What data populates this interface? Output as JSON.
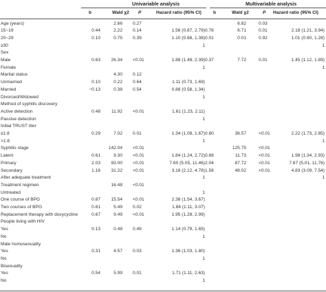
{
  "table": {
    "group_univariable": "Univariable analysis",
    "group_multivariable": "Multivariable analysis",
    "headers": {
      "b": "b",
      "wald": "Wald χ2",
      "p": "P",
      "hr": "Hazard ratio (95% CI)",
      "b2": "b",
      "wald2": "Wald χ2",
      "p2": "P",
      "hr2": "Hazard ratio (95% CI)"
    },
    "rows": [
      {
        "label": "Age (years)",
        "b1": "",
        "w1": "2.66",
        "p1": "0.27",
        "h1": "",
        "b2": "",
        "w2": "6.82",
        "p2": "0.03",
        "h2": ""
      },
      {
        "label": "15~19",
        "b1": "0.44",
        "w1": "2.22",
        "p1": "0.14",
        "h1": "1.56 (0.87, 2.79)",
        "b2": "0.78",
        "w2": "6.71",
        "p2": "0.01",
        "h2": "2.18 (1.21, 3.94)"
      },
      {
        "label": "20~29",
        "b1": "0.10",
        "w1": "0.75",
        "p1": "0.39",
        "h1": "1.10 (0.88, 1.38)",
        "b2": "0.01",
        "w2": "0.01",
        "p2": "0.92",
        "h2": "1.01 (0.80, 1.28)"
      },
      {
        "label": "≥30",
        "b1": "",
        "w1": "",
        "p1": "",
        "h1": "1",
        "b2": "",
        "w2": "",
        "p2": "",
        "h2": "1"
      },
      {
        "label": "Sex",
        "b1": "",
        "w1": "",
        "p1": "",
        "h1": "",
        "b2": "",
        "w2": "",
        "p2": "",
        "h2": ""
      },
      {
        "label": "Male",
        "b1": "0.63",
        "w1": "26.34",
        "p1": "<0.01",
        "h1": "1.88 (1.48, 2.39)",
        "b2": "0.37",
        "w2": "7.72",
        "p2": "0.01",
        "h2": "1.45 (1.12, 1.89)"
      },
      {
        "label": "Female",
        "b1": "",
        "w1": "",
        "p1": "",
        "h1": "1",
        "b2": "",
        "w2": "",
        "p2": "",
        "h2": "1"
      },
      {
        "label": "Marital status",
        "b1": "",
        "w1": "4.30",
        "p1": "0.12",
        "h1": "",
        "b2": "",
        "w2": "",
        "p2": "",
        "h2": ""
      },
      {
        "label": "Unmarried",
        "b1": "0.10",
        "w1": "0.22",
        "p1": "0.64",
        "h1": "1.11 (0.73, 1.69)",
        "b2": "",
        "w2": "",
        "p2": "",
        "h2": ""
      },
      {
        "label": "Married",
        "b1": "−0.13",
        "w1": "0.38",
        "p1": "0.54",
        "h1": "0.88 (0.58, 1.34)",
        "b2": "",
        "w2": "",
        "p2": "",
        "h2": ""
      },
      {
        "label": "Divorced/Widowed",
        "b1": "",
        "w1": "",
        "p1": "",
        "h1": "1",
        "b2": "",
        "w2": "",
        "p2": "",
        "h2": ""
      },
      {
        "label": "Method of syphilis discovery",
        "b1": "",
        "w1": "",
        "p1": "",
        "h1": "",
        "b2": "",
        "w2": "",
        "p2": "",
        "h2": ""
      },
      {
        "label": "Active detection",
        "b1": "0.48",
        "w1": "11.92",
        "p1": "<0.01",
        "h1": "1.61 (1.23, 2.11)",
        "b2": "",
        "w2": "",
        "p2": "",
        "h2": ""
      },
      {
        "label": "Passive detection",
        "b1": "",
        "w1": "",
        "p1": "",
        "h1": "1",
        "b2": "",
        "w2": "",
        "p2": "",
        "h2": ""
      },
      {
        "label": "Initial TRUST titer",
        "b1": "",
        "w1": "",
        "p1": "",
        "h1": "",
        "b2": "",
        "w2": "",
        "p2": "",
        "h2": ""
      },
      {
        "label": "≤1:8",
        "b1": "0.29",
        "w1": "7.02",
        "p1": "0.01",
        "h1": "1.34 (1.08, 1.67)",
        "b2": "0.80",
        "w2": "38.57",
        "p2": "<0.01",
        "h2": "2.22 (1.73, 2.85)"
      },
      {
        "label": ">1:8",
        "b1": "",
        "w1": "",
        "p1": "",
        "h1": "1",
        "b2": "",
        "w2": "",
        "p2": "",
        "h2": "1"
      },
      {
        "label": "Syphilis stage",
        "b1": "",
        "w1": "142.04",
        "p1": "<0.01",
        "h1": "",
        "b2": "",
        "w2": "125.75",
        "p2": "<0.01",
        "h2": ""
      },
      {
        "label": "Latent",
        "b1": "0.61",
        "w1": "9.30",
        "p1": "<0.01",
        "h1": "1.84 (1.24, 2.72)",
        "b2": "0.68",
        "w2": "11.73",
        "p2": "<0.01",
        "h2": "1.98 (1.34, 2.93)"
      },
      {
        "label": "Primary",
        "b1": "2.03",
        "w1": "93.00",
        "p1": "<0.01",
        "h1": "7.60 (5.05, 11.46)",
        "b2": "2.04",
        "w2": "87.72",
        "p2": "<0.01",
        "h2": "7.67 (5.01, 11.76)"
      },
      {
        "label": "Secondary",
        "b1": "1.16",
        "w1": "31.22",
        "p1": "<0.01",
        "h1": "3.18 (2.12, 4.78)",
        "b2": "1.58",
        "w2": "48.02",
        "p2": "<0.01",
        "h2": "4.83 (3.09, 7.54)"
      },
      {
        "label": "After adequate treatment",
        "b1": "",
        "w1": "",
        "p1": "",
        "h1": "1",
        "b2": "",
        "w2": "",
        "p2": "",
        "h2": "1"
      },
      {
        "label": "Treatment regimen",
        "b1": "",
        "w1": "16.48",
        "p1": "<0.01",
        "h1": "",
        "b2": "",
        "w2": "",
        "p2": "",
        "h2": ""
      },
      {
        "label": "Untreated",
        "b1": "",
        "w1": "",
        "p1": "",
        "h1": "1",
        "b2": "",
        "w2": "",
        "p2": "",
        "h2": ""
      },
      {
        "label": "One course of BPG",
        "b1": "0.87",
        "w1": "15.54",
        "p1": "<0.01",
        "h1": "2.38 (1.54, 3.67)",
        "b2": "",
        "w2": "",
        "p2": "",
        "h2": ""
      },
      {
        "label": "Two courses of BPG",
        "b1": "0.61",
        "w1": "5.49",
        "p1": "0.02",
        "h1": "1.84 (1.11, 3.07)",
        "b2": "",
        "w2": "",
        "p2": "",
        "h2": ""
      },
      {
        "label": "Replacement therapy with doxycycline",
        "b1": "0.67",
        "w1": "9.49",
        "p1": "<0.01",
        "h1": "1.95 (1.28, 2.99)",
        "b2": "",
        "w2": "",
        "p2": "",
        "h2": ""
      },
      {
        "label": "People living with HIV",
        "b1": "",
        "w1": "",
        "p1": "",
        "h1": "",
        "b2": "",
        "w2": "",
        "p2": "",
        "h2": ""
      },
      {
        "label": "Yes",
        "b1": "0.13",
        "w1": "0.48",
        "p1": "0.49",
        "h1": "1.14 (0.79, 1.65)",
        "b2": "",
        "w2": "",
        "p2": "",
        "h2": ""
      },
      {
        "label": "No",
        "b1": "",
        "w1": "",
        "p1": "",
        "h1": "1",
        "b2": "",
        "w2": "",
        "p2": "",
        "h2": ""
      },
      {
        "label": "Male homosexuality",
        "b1": "",
        "w1": "",
        "p1": "",
        "h1": "",
        "b2": "",
        "w2": "",
        "p2": "",
        "h2": ""
      },
      {
        "label": "Yes",
        "b1": "0.31",
        "w1": "4.57",
        "p1": "0.03",
        "h1": "1.36 (1.03, 1.80)",
        "b2": "",
        "w2": "",
        "p2": "",
        "h2": ""
      },
      {
        "label": "No",
        "b1": "",
        "w1": "",
        "p1": "",
        "h1": "1",
        "b2": "",
        "w2": "",
        "p2": "",
        "h2": ""
      },
      {
        "label": "Bisexuality",
        "b1": "",
        "w1": "",
        "p1": "",
        "h1": "",
        "b2": "",
        "w2": "",
        "p2": "",
        "h2": ""
      },
      {
        "label": "Yes",
        "b1": "0.54",
        "w1": "5.99",
        "p1": "0.01",
        "h1": "1.71 (1.11, 2.63)",
        "b2": "",
        "w2": "",
        "p2": "",
        "h2": ""
      },
      {
        "label": "No",
        "b1": "",
        "w1": "",
        "p1": "",
        "h1": "1",
        "b2": "",
        "w2": "",
        "p2": "",
        "h2": ""
      }
    ]
  }
}
